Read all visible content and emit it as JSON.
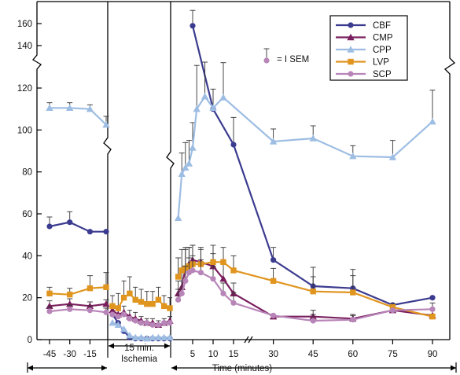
{
  "chart_data": {
    "type": "line",
    "title": "",
    "xlabel": "Time (minutes)",
    "ylabel": "",
    "ylim": [
      0,
      165
    ],
    "y_ticks": [
      "0",
      "20",
      "40",
      "60",
      "80",
      "100",
      "120",
      "140",
      "160"
    ],
    "y_axis_break": "between 120 and 140",
    "x_ticks": [
      {
        "label": "-45",
        "x": -45
      },
      {
        "label": "-30",
        "x": -30
      },
      {
        "label": "-15",
        "x": -15
      },
      {
        "label": "5",
        "x": 5
      },
      {
        "label": "10",
        "x": 10
      },
      {
        "label": "15",
        "x": 15
      },
      {
        "label": "30",
        "x": 30
      },
      {
        "label": "45",
        "x": 45
      },
      {
        "label": "60",
        "x": 60
      },
      {
        "label": "75",
        "x": 75
      },
      {
        "label": "90",
        "x": 90
      }
    ],
    "ischemia_label": [
      "15 min.",
      "Ischemia"
    ],
    "legend_position": "top-right",
    "sem_annotation": "= I SEM",
    "grid": false,
    "series": [
      {
        "name": "CBF",
        "color": "#3b3b8f",
        "marker": "circle",
        "points": [
          {
            "x": -45,
            "y": 54,
            "err": 4.5
          },
          {
            "x": -30,
            "y": 56,
            "err": 5
          },
          {
            "x": -15,
            "y": 51.5,
            "err": 0
          },
          {
            "x": -3,
            "y": 51.5,
            "err": 0
          },
          {
            "x": 5,
            "y": 158,
            "err": 14
          },
          {
            "x": 10,
            "y": 110,
            "err": 0
          },
          {
            "x": 15,
            "y": 93,
            "err": 13
          },
          {
            "x": 30,
            "y": 38,
            "err": 6
          },
          {
            "x": 45,
            "y": 25.5,
            "err": 9
          },
          {
            "x": 60,
            "y": 24.5,
            "err": 9
          },
          {
            "x": 75,
            "y": 16.5,
            "err": 0
          },
          {
            "x": 90,
            "y": 20,
            "err": 0
          }
        ]
      },
      {
        "name": "CMP",
        "color": "#7a1f5e",
        "marker": "triangle",
        "points": [
          {
            "x": -45,
            "y": 16,
            "err": 2.5
          },
          {
            "x": -30,
            "y": 17,
            "err": 2.5
          },
          {
            "x": -15,
            "y": 16,
            "err": 2
          },
          {
            "x": -3,
            "y": 17,
            "err": 2
          },
          {
            "x": 1,
            "y": 22,
            "err": 6
          },
          {
            "x": 2,
            "y": 25,
            "err": 8
          },
          {
            "x": 3,
            "y": 34,
            "err": 9
          },
          {
            "x": 4,
            "y": 36,
            "err": 8
          },
          {
            "x": 5,
            "y": 38,
            "err": 7
          },
          {
            "x": 7,
            "y": 37,
            "err": 6
          },
          {
            "x": 10,
            "y": 35,
            "err": 6
          },
          {
            "x": 12.5,
            "y": 29,
            "err": 7
          },
          {
            "x": 15,
            "y": 22,
            "err": 5
          },
          {
            "x": 30,
            "y": 11,
            "err": 0
          },
          {
            "x": 45,
            "y": 11,
            "err": 3
          },
          {
            "x": 60,
            "y": 10,
            "err": 2
          },
          {
            "x": 75,
            "y": 14,
            "err": 3
          },
          {
            "x": 90,
            "y": 11.5,
            "err": 0
          }
        ]
      },
      {
        "name": "CPP",
        "color": "#9dbde3",
        "marker": "triangle",
        "points": [
          {
            "x": -45,
            "y": 110.5,
            "err": 2.5
          },
          {
            "x": -30,
            "y": 110.5,
            "err": 2.5
          },
          {
            "x": -15,
            "y": 110,
            "err": 2
          },
          {
            "x": -3,
            "y": 102.5,
            "err": 4
          },
          {
            "x": 1,
            "y": 58,
            "err": 0
          },
          {
            "x": 2,
            "y": 79,
            "err": 10
          },
          {
            "x": 3,
            "y": 82,
            "err": 12
          },
          {
            "x": 4,
            "y": 84,
            "err": 11
          },
          {
            "x": 5,
            "y": 91.5,
            "err": 12
          },
          {
            "x": 6,
            "y": 110,
            "err": 12
          },
          {
            "x": 8,
            "y": 116,
            "err": 9
          },
          {
            "x": 10,
            "y": 110.5,
            "err": 9
          },
          {
            "x": 12.5,
            "y": 115.5,
            "err": 9
          },
          {
            "x": 30,
            "y": 94.5,
            "err": 6
          },
          {
            "x": 45,
            "y": 96,
            "err": 6
          },
          {
            "x": 60,
            "y": 87.5,
            "err": 5
          },
          {
            "x": 75,
            "y": 87,
            "err": 8
          },
          {
            "x": 90,
            "y": 104,
            "err": 15
          }
        ]
      },
      {
        "name": "LVP",
        "color": "#e0951f",
        "marker": "square",
        "points": [
          {
            "x": -45,
            "y": 22,
            "err": 3
          },
          {
            "x": -30,
            "y": 21.5,
            "err": 3
          },
          {
            "x": -15,
            "y": 24.5,
            "err": 6
          },
          {
            "x": -3,
            "y": 25,
            "err": 7
          },
          {
            "x": 1,
            "y": 30,
            "err": 9
          },
          {
            "x": 2,
            "y": 33,
            "err": 10
          },
          {
            "x": 3,
            "y": 34,
            "err": 10
          },
          {
            "x": 4,
            "y": 35,
            "err": 9
          },
          {
            "x": 5,
            "y": 36,
            "err": 9
          },
          {
            "x": 7,
            "y": 36,
            "err": 8
          },
          {
            "x": 10,
            "y": 37,
            "err": 8
          },
          {
            "x": 12.5,
            "y": 37,
            "err": 7
          },
          {
            "x": 15,
            "y": 33,
            "err": 7
          },
          {
            "x": 30,
            "y": 28,
            "err": 6
          },
          {
            "x": 45,
            "y": 23,
            "err": 7
          },
          {
            "x": 60,
            "y": 22.5,
            "err": 8
          },
          {
            "x": 75,
            "y": 15.5,
            "err": 0
          },
          {
            "x": 90,
            "y": 11,
            "err": 0
          }
        ]
      },
      {
        "name": "SCP",
        "color": "#b885b8",
        "marker": "circle",
        "points": [
          {
            "x": -45,
            "y": 13.5,
            "err": 2
          },
          {
            "x": -30,
            "y": 14.5,
            "err": 2
          },
          {
            "x": -15,
            "y": 14,
            "err": 2
          },
          {
            "x": -3,
            "y": 13,
            "err": 2
          },
          {
            "x": 1,
            "y": 19,
            "err": 5
          },
          {
            "x": 2,
            "y": 22,
            "err": 6
          },
          {
            "x": 3,
            "y": 28,
            "err": 7
          },
          {
            "x": 4,
            "y": 32,
            "err": 7
          },
          {
            "x": 5,
            "y": 33,
            "err": 7
          },
          {
            "x": 7,
            "y": 32,
            "err": 6
          },
          {
            "x": 10,
            "y": 29,
            "err": 6
          },
          {
            "x": 12.5,
            "y": 22,
            "err": 5
          },
          {
            "x": 15,
            "y": 17.5,
            "err": 5
          },
          {
            "x": 30,
            "y": 11.5,
            "err": 0
          },
          {
            "x": 45,
            "y": 9,
            "err": 3
          },
          {
            "x": 60,
            "y": 9.5,
            "err": 2
          },
          {
            "x": 75,
            "y": 14,
            "err": 0
          },
          {
            "x": 90,
            "y": 14.5,
            "err": 3
          }
        ]
      }
    ],
    "ischemia_points": {
      "x": [
        -2,
        -1,
        0,
        1,
        2,
        3,
        4,
        5,
        6,
        7,
        8
      ],
      "series": {
        "CBF": [
          12,
          8,
          4,
          1,
          0.5,
          0.5,
          0.5,
          0.5,
          0.5,
          0.5,
          0.5
        ],
        "CMP": [
          14,
          12,
          13,
          11,
          10,
          9,
          8,
          8,
          7,
          8,
          9
        ],
        "CPP": [
          8,
          7,
          5,
          2,
          1,
          1,
          0.5,
          1,
          1,
          1,
          1
        ],
        "LVP": [
          16,
          15,
          20,
          22,
          19,
          18,
          17,
          17,
          19,
          16,
          15
        ],
        "SCP": [
          12,
          11,
          12,
          10,
          9,
          8,
          8,
          7,
          7,
          8,
          8
        ]
      },
      "errors": {
        "LVP": [
          5,
          7,
          8,
          8,
          6,
          6,
          6,
          6,
          6,
          5,
          5
        ],
        "CMP": [
          3,
          3,
          3,
          3,
          3,
          2,
          2,
          2,
          2,
          2,
          2
        ]
      }
    }
  }
}
